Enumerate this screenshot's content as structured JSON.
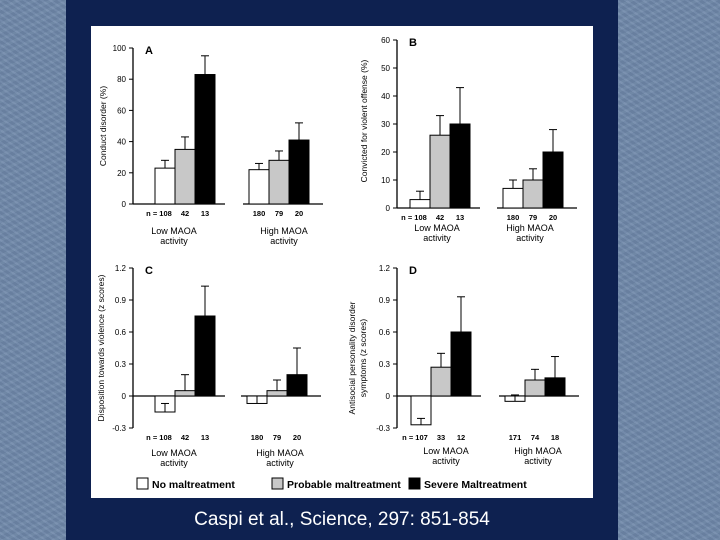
{
  "caption": "Caspi et al., Science, 297:  851-854",
  "legend": {
    "items": [
      {
        "label": "No maltreatment",
        "color": "#ffffff"
      },
      {
        "label": "Probable maltreatment",
        "color": "#c8c8c8"
      },
      {
        "label": "Severe Maltreatment",
        "color": "#000000"
      }
    ]
  },
  "chart_data": [
    {
      "type": "bar",
      "panel": "A",
      "ylabel": "Conduct disorder (%)",
      "ylim": [
        0,
        100
      ],
      "yticks": [
        "0",
        "20",
        "40",
        "60",
        "80",
        "100"
      ],
      "ytick_values": [
        0,
        20,
        40,
        60,
        80,
        100
      ],
      "groups": [
        {
          "label_line1": "Low MAOA",
          "label_line2": "activity",
          "n": [
            "n = 108",
            "42",
            "13"
          ],
          "values": [
            23,
            35,
            83
          ],
          "errors": [
            5,
            8,
            12
          ]
        },
        {
          "label_line1": "High MAOA",
          "label_line2": "activity",
          "n": [
            "180",
            "79",
            "20"
          ],
          "values": [
            22,
            28,
            41
          ],
          "errors": [
            4,
            6,
            11
          ]
        }
      ]
    },
    {
      "type": "bar",
      "panel": "B",
      "ylabel": "Convicted for violent offense (%)",
      "ylim": [
        0,
        60
      ],
      "yticks": [
        "0",
        "10",
        "20",
        "30",
        "40",
        "50",
        "60"
      ],
      "ytick_values": [
        0,
        10,
        20,
        30,
        40,
        50,
        60
      ],
      "groups": [
        {
          "label_line1": "Low MAOA",
          "label_line2": "activity",
          "n": [
            "n = 108",
            "42",
            "13"
          ],
          "values": [
            3,
            26,
            30
          ],
          "errors": [
            3,
            7,
            13
          ]
        },
        {
          "label_line1": "High MAOA",
          "label_line2": "activity",
          "n": [
            "180",
            "79",
            "20"
          ],
          "values": [
            7,
            10,
            20
          ],
          "errors": [
            3,
            4,
            8
          ]
        }
      ]
    },
    {
      "type": "bar",
      "panel": "C",
      "ylabel": "Disposition towards violence (z scores)",
      "ylim": [
        -0.3,
        1.2
      ],
      "yticks": [
        "-0.3",
        "0",
        "0.3",
        "0.6",
        "0.9",
        "1.2"
      ],
      "ytick_values": [
        -0.3,
        0,
        0.3,
        0.6,
        0.9,
        1.2
      ],
      "groups": [
        {
          "label_line1": "Low MAOA",
          "label_line2": "activity",
          "n": [
            "n = 108",
            "42",
            "13"
          ],
          "values": [
            -0.15,
            0.05,
            0.75
          ],
          "errors": [
            0.08,
            0.15,
            0.28
          ]
        },
        {
          "label_line1": "High MAOA",
          "label_line2": "activity",
          "n": [
            "180",
            "79",
            "20"
          ],
          "values": [
            -0.07,
            0.05,
            0.2
          ],
          "errors": [
            0.07,
            0.1,
            0.25
          ]
        }
      ]
    },
    {
      "type": "bar",
      "panel": "D",
      "ylabel": "Antisocial personality disorder symptoms (z scores)",
      "ylabel_line1": "Antisocial personality disorder",
      "ylabel_line2": "symptoms (z scores)",
      "ylim": [
        -0.3,
        1.2
      ],
      "yticks": [
        "-0.3",
        "0",
        "0.3",
        "0.6",
        "0.9",
        "1.2"
      ],
      "ytick_values": [
        -0.3,
        0,
        0.3,
        0.6,
        0.9,
        1.2
      ],
      "groups": [
        {
          "label_line1": "Low MAOA",
          "label_line2": "activity",
          "n": [
            "n = 107",
            "33",
            "12"
          ],
          "values": [
            -0.27,
            0.27,
            0.6
          ],
          "errors": [
            0.06,
            0.13,
            0.33
          ]
        },
        {
          "label_line1": "High MAOA",
          "label_line2": "activity",
          "n": [
            "171",
            "74",
            "18"
          ],
          "values": [
            -0.05,
            0.15,
            0.17
          ],
          "errors": [
            0.06,
            0.1,
            0.2
          ]
        }
      ]
    }
  ]
}
